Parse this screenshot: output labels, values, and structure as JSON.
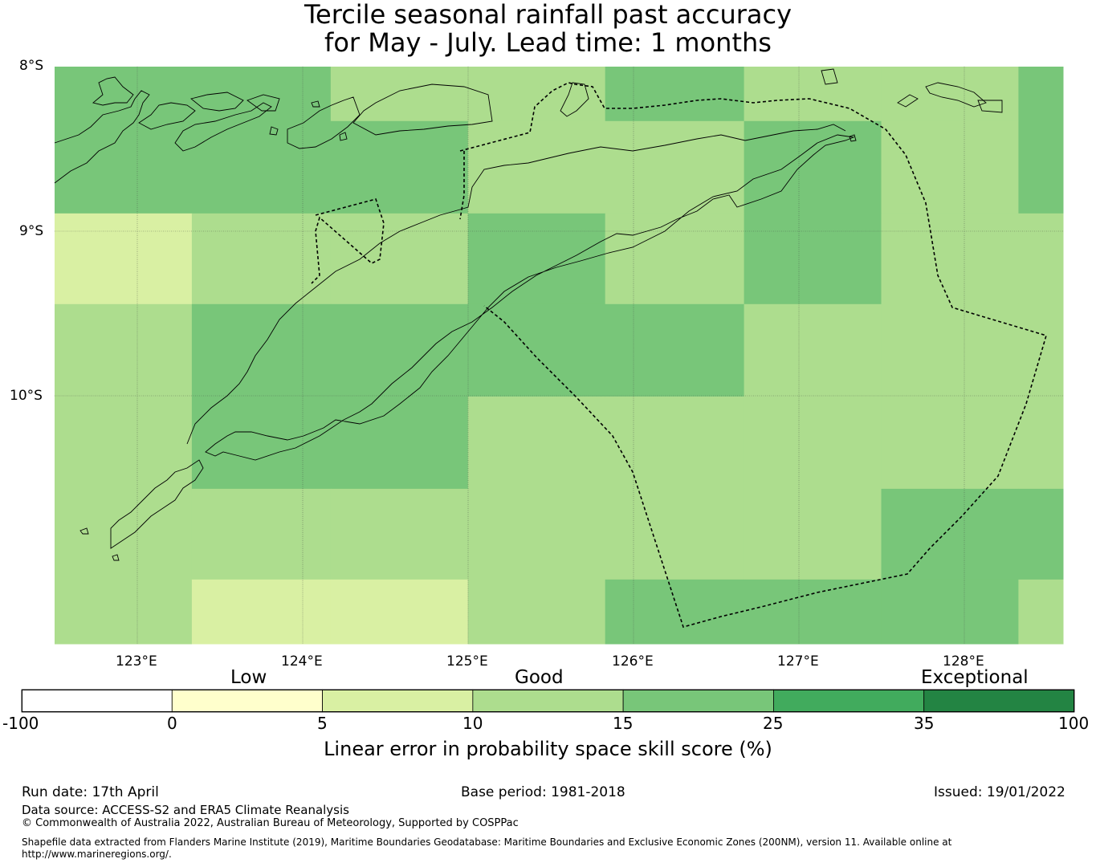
{
  "title": {
    "line1": "Tercile seasonal rainfall past accuracy",
    "line2": "for May - July. Lead time: 1 months"
  },
  "map": {
    "lon_labels": [
      "123°E",
      "124°E",
      "125°E",
      "126°E",
      "127°E",
      "128°E"
    ],
    "lat_labels": [
      "8°S",
      "9°S",
      "10°S"
    ],
    "lon_range": [
      122.5,
      128.6
    ],
    "lat_range": [
      -11.5,
      -8.0
    ],
    "colors": {
      "c0_5": "#ffffcc",
      "c5_10": "#d9f0a3",
      "c10_15": "#addd8e",
      "c15_25": "#78c679",
      "c25_35": "#41ab5d",
      "c35_100": "#238443"
    },
    "grid": {
      "lon_edges": [
        122.5,
        123.33,
        124.17,
        125.0,
        125.83,
        126.67,
        127.5,
        128.33,
        128.6
      ],
      "lat_edges": [
        -8.0,
        -8.33,
        -8.89,
        -9.44,
        -10.0,
        -10.56,
        -11.11,
        -11.5
      ],
      "scores": [
        [
          20,
          20,
          12,
          12,
          20,
          12,
          12,
          20
        ],
        [
          20,
          20,
          20,
          12,
          12,
          20,
          12,
          20
        ],
        [
          8,
          12,
          12,
          20,
          12,
          20,
          12,
          12
        ],
        [
          12,
          20,
          20,
          20,
          20,
          12,
          12,
          12
        ],
        [
          12,
          20,
          20,
          12,
          12,
          12,
          12,
          12
        ],
        [
          12,
          12,
          12,
          12,
          12,
          12,
          20,
          20
        ],
        [
          12,
          8,
          8,
          12,
          20,
          20,
          20,
          12
        ]
      ]
    }
  },
  "legend": {
    "categories": [
      "Low",
      "Good",
      "Exceptional"
    ],
    "ticks": [
      "-100",
      "0",
      "5",
      "10",
      "15",
      "25",
      "35",
      "100"
    ],
    "segment_colors": [
      "#ffffff",
      "#ffffcc",
      "#d9f0a3",
      "#addd8e",
      "#78c679",
      "#41ab5d",
      "#238443"
    ],
    "label": "Linear error in probability space skill score (%)"
  },
  "footer": {
    "run_date": "Run date: 17th April",
    "base_period": "Base period: 1981-2018",
    "issued": "Issued: 19/01/2022",
    "data_source": "Data source: ACCESS-S2 and ERA5 Climate Reanalysis",
    "copyright": "© Commonwealth of Australia 2022, Australian Bureau of Meteorology, Supported by COSPPac",
    "shapefile": "Shapefile data extracted from Flanders Marine Institute (2019), Maritime Boundaries Geodatabase: Maritime Boundaries and Exclusive Economic Zones (200NM), version 11. Available online at http://www.marineregions.org/."
  }
}
